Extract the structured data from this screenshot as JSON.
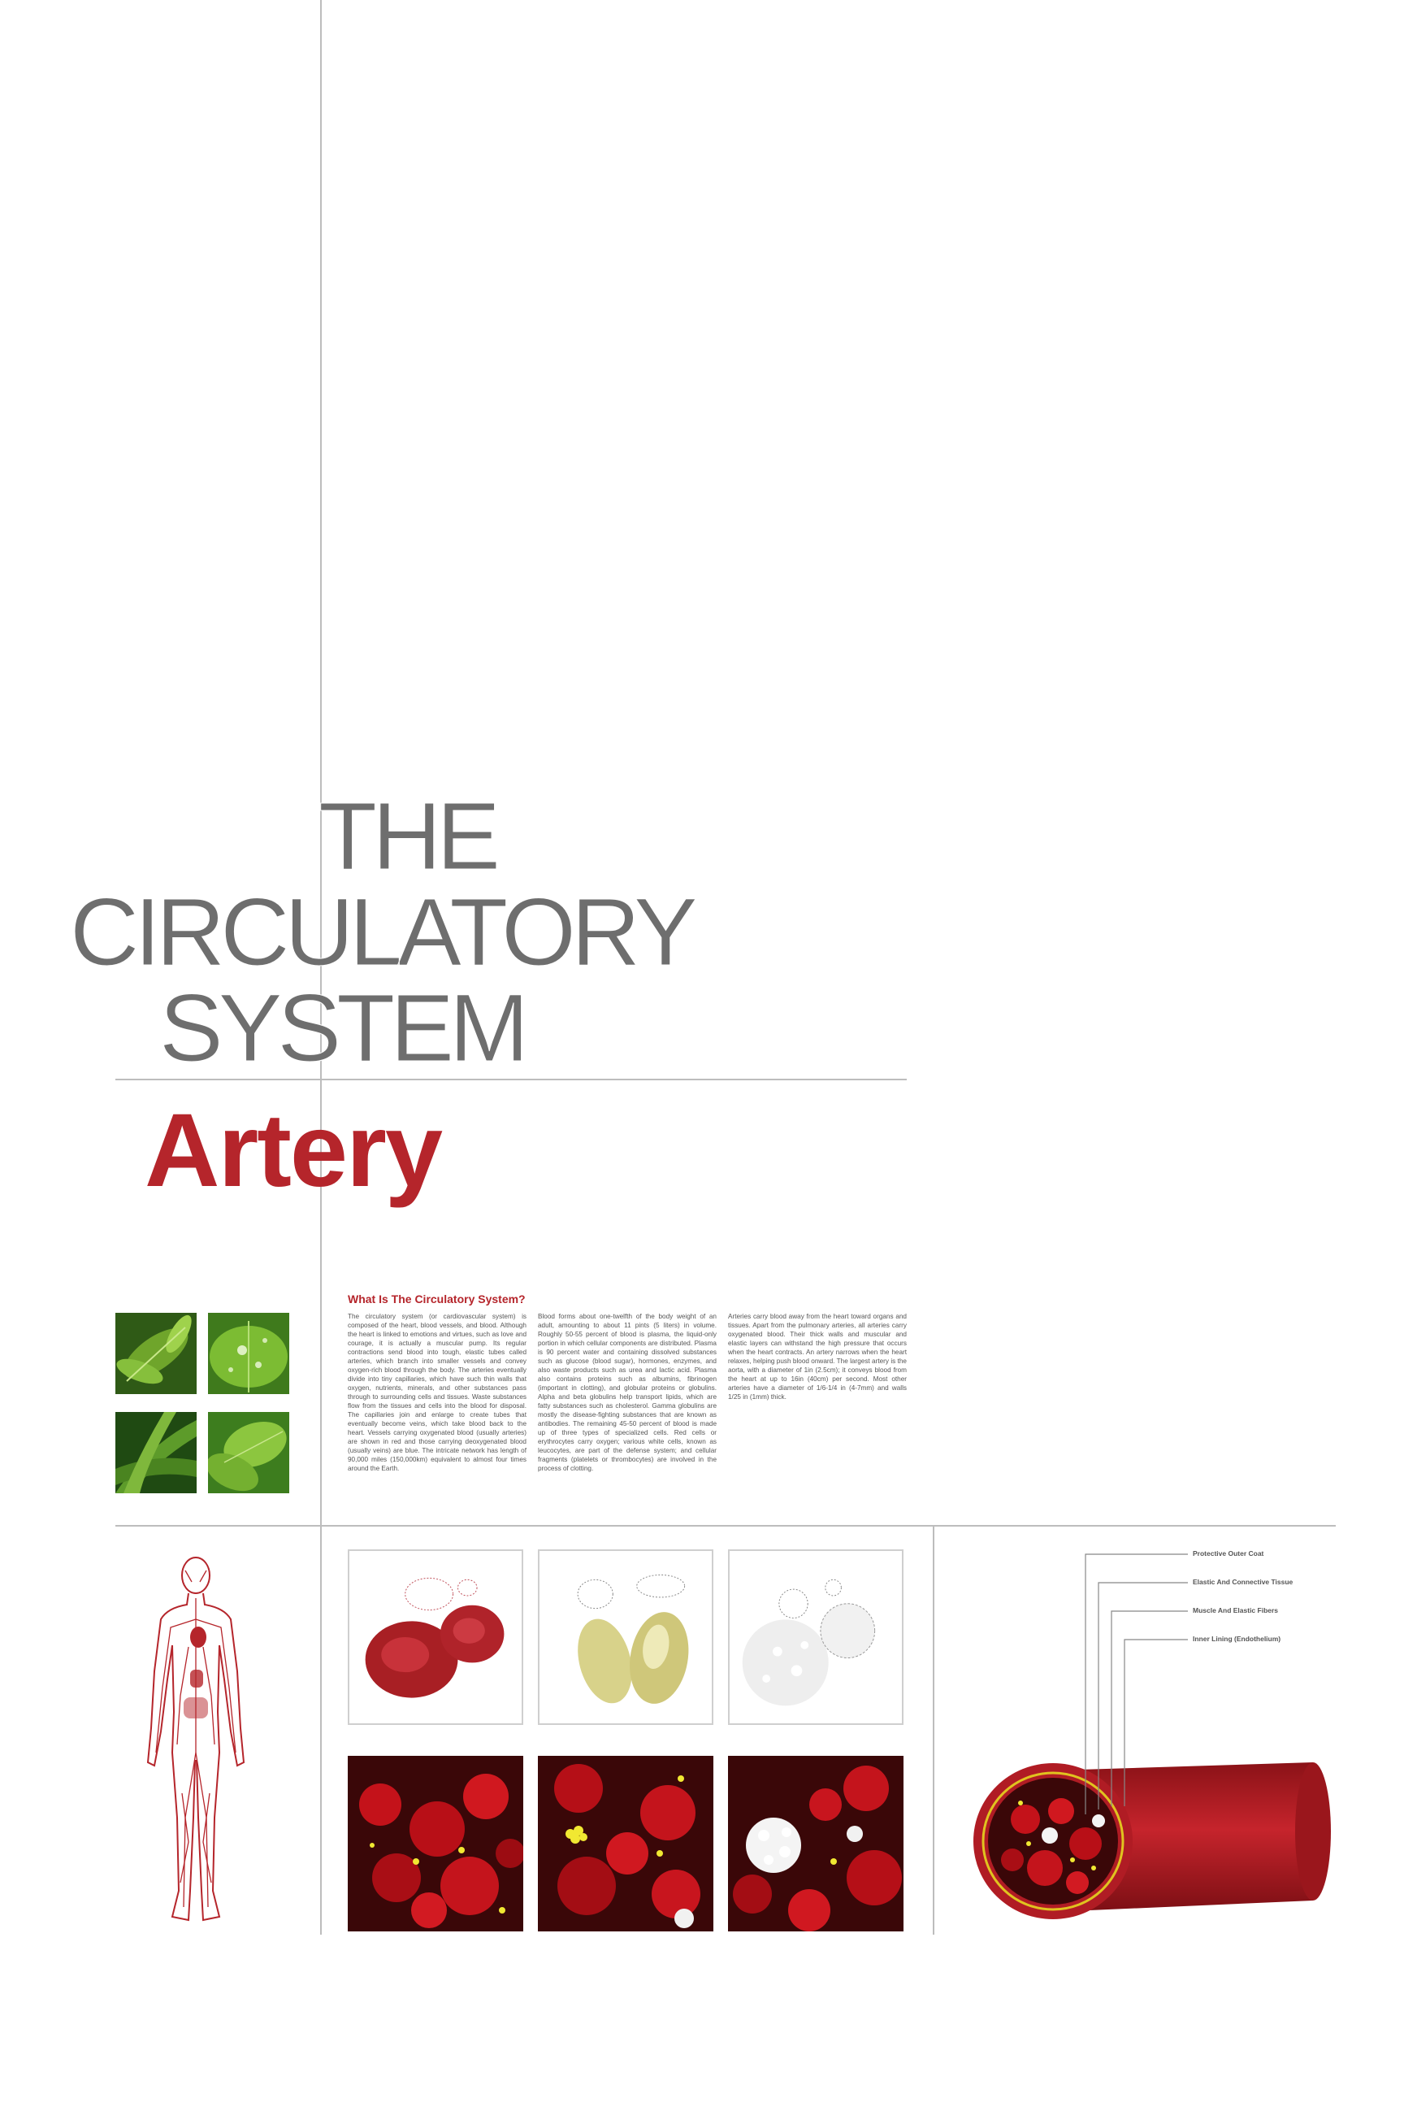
{
  "title": {
    "line1": "THE",
    "line2": "CIRCULATORY",
    "line3": "SYSTEM"
  },
  "subtitle": "Artery",
  "article": {
    "heading": "What Is The Circulatory System?",
    "columns": [
      "The circulatory system (or cardiovascular system) is composed of the heart, blood vessels, and blood. Although the heart is linked to emotions and virtues, such as love and courage, it is actually a muscular pump. Its regular contractions send blood into tough, elastic tubes called arteries, which branch into smaller vessels and convey oxygen-rich blood through the body. The arteries eventually divide into tiny capillaries, which have such thin walls that oxygen, nutrients, minerals, and other substances pass through to surrounding cells and tissues. Waste substances flow from the tissues and cells into the blood for disposal. The capillaries join and enlarge to create tubes that eventually become veins, which take blood back to the heart. Vessels carrying oxygenated blood (usually arteries) are shown in red and those carrying deoxygenated blood (usually veins) are blue. The intricate network has length of 90,000 miles (150,000km) equivalent to almost four times around the Earth.",
      "Blood forms about one-twelfth of the body weight of an adult, amounting to about 11 pints (5 liters) in volume. Roughly 50-55 percent of blood is plasma, the liquid-only portion in which cellular components are distributed. Plasma is 90 percent water and containing dissolved substances such as glucose (blood sugar), hormones, enzymes, and also waste products such as urea and lactic acid. Plasma also contains proteins such as albumins, fibrinogen (important in clotting), and globular proteins or globulins. Alpha and beta globulins help transport lipids, which are fatty substances such as cholesterol. Gamma globulins are mostly the disease-fighting substances that are known as antibodies. The remaining 45-50 percent of blood is made up of three types of specialized cells. Red cells or erythrocytes carry oxygen; various white cells, known as leucocytes, are part of the defense system; and cellular fragments (platelets or thrombocytes) are involved in the process of clotting.",
      "Arteries carry blood away from the heart toward organs and tissues. Apart from the pulmonary arteries, all arteries carry oxygenated blood. Their thick walls and muscular and elastic layers can withstand the high pressure that occurs when the heart contracts. An artery narrows when the heart relaxes, helping push blood onward. The largest artery is the aorta, with a diameter of 1in (2.5cm); it conveys blood from the heart at up to 16in (40cm) per second. Most other arteries have a diameter of 1/6-1/4 in (4-7mm) and walls 1/25 in (1mm) thick."
    ]
  },
  "artery_diagram": {
    "labels": [
      "Protective Outer Coat",
      "Elastic And Connective Tissue",
      "Muscle And Elastic Fibers",
      "Inner Lining (Endothelium)"
    ]
  },
  "colors": {
    "accent": "#b5252b",
    "title_gray": "#6e6e6e",
    "rule_gray": "#bdbdbd"
  }
}
